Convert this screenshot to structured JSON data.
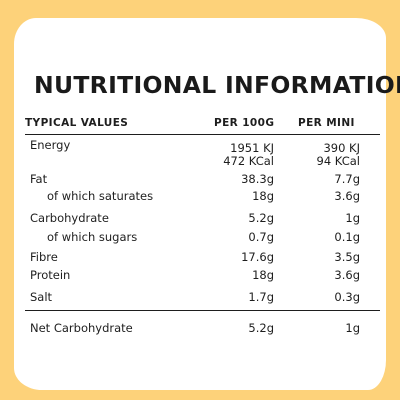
{
  "title": "NUTRITIONAL INFORMATION",
  "headers": {
    "label": "TYPICAL VALUES",
    "col1": "PER 100G",
    "col2": "PER MINI"
  },
  "rows": {
    "energy": {
      "label": "Energy",
      "per100g_kj": "1951 KJ",
      "per100g_kcal": "472 KCal",
      "permini_kj": "390 KJ",
      "permini_kcal": "94 KCal"
    },
    "fat": {
      "label": "Fat",
      "per100g": "38.3g",
      "permini": "7.7g"
    },
    "saturates": {
      "label": "of which saturates",
      "per100g": "18g",
      "permini": "3.6g"
    },
    "carbohydrate": {
      "label": "Carbohydrate",
      "per100g": "5.2g",
      "permini": "1g"
    },
    "sugars": {
      "label": "of which sugars",
      "per100g": "0.7g",
      "permini": "0.1g"
    },
    "fibre": {
      "label": "Fibre",
      "per100g": "17.6g",
      "permini": "3.5g"
    },
    "protein": {
      "label": "Protein",
      "per100g": "18g",
      "permini": "3.6g"
    },
    "salt": {
      "label": "Salt",
      "per100g": "1.7g",
      "permini": "0.3g"
    },
    "net_carbohydrate": {
      "label": "Net Carbohydrate",
      "per100g": "5.2g",
      "permini": "1g"
    }
  },
  "colors": {
    "background": "#fdd27a",
    "card": "#ffffff",
    "text": "#1e1e1e"
  }
}
